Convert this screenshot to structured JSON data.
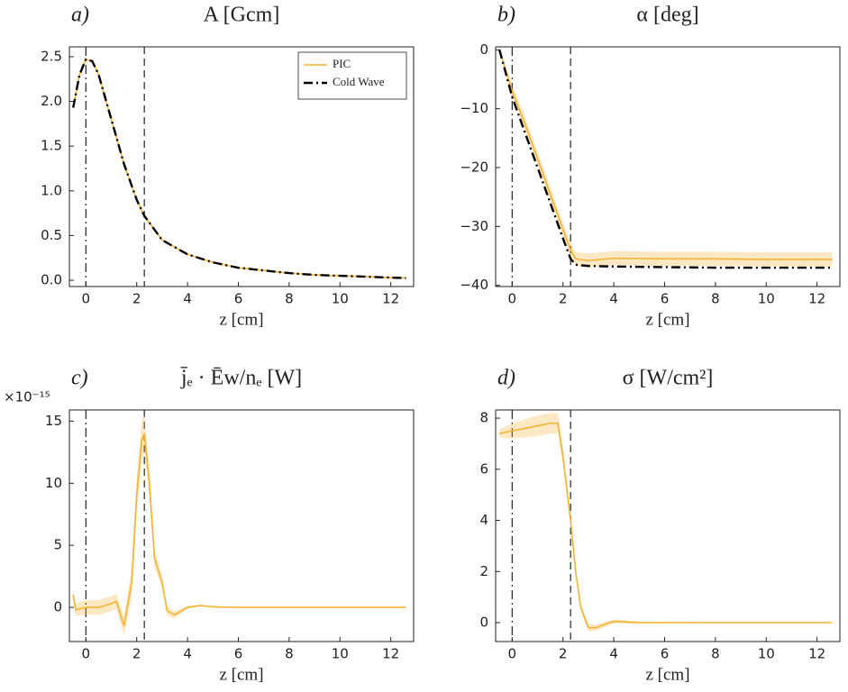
{
  "chart_data": [
    {
      "type": "line",
      "panel_label": "a)",
      "title": "A [Gcm]",
      "x_label": "z [cm]",
      "x": [
        -0.5,
        -0.25,
        0,
        0.25,
        0.5,
        1,
        1.5,
        2,
        2.3,
        3,
        4,
        5,
        6,
        7,
        8,
        9,
        10,
        11,
        12,
        12.6
      ],
      "series": [
        {
          "name": "PIC",
          "color": "#f5b335",
          "style": "solid",
          "values": [
            1.93,
            2.3,
            2.47,
            2.45,
            2.3,
            1.8,
            1.3,
            0.9,
            0.72,
            0.45,
            0.29,
            0.2,
            0.14,
            0.11,
            0.08,
            0.06,
            0.05,
            0.04,
            0.03,
            0.025
          ]
        },
        {
          "name": "Cold Wave",
          "color": "#000000",
          "style": "dashdot",
          "values": [
            1.93,
            2.3,
            2.47,
            2.45,
            2.3,
            1.8,
            1.3,
            0.9,
            0.72,
            0.45,
            0.29,
            0.2,
            0.14,
            0.11,
            0.08,
            0.06,
            0.05,
            0.04,
            0.03,
            0.025
          ]
        }
      ],
      "vlines": [
        {
          "x": 0,
          "style": "dashdot"
        },
        {
          "x": 2.3,
          "style": "dashed"
        }
      ],
      "xlim": [
        -0.65,
        12.9
      ],
      "ylim": [
        -0.07,
        2.61
      ],
      "xticks": [
        0,
        2,
        4,
        6,
        8,
        10,
        12
      ],
      "yticks": [
        {
          "value": 0,
          "label": "0.0"
        },
        0.5,
        {
          "value": 1,
          "label": "1.0"
        },
        1.5,
        {
          "value": 2,
          "label": "2.0"
        },
        2.5
      ],
      "legend": "upper right"
    },
    {
      "type": "line",
      "panel_label": "b)",
      "title": "α [deg]",
      "x_label": "z [cm]",
      "x": [
        -0.5,
        0,
        0.5,
        1,
        1.5,
        2,
        2.3,
        2.5,
        3,
        4,
        6,
        8,
        10,
        12,
        12.6
      ],
      "series": [
        {
          "name": "PIC",
          "color": "#f5b335",
          "style": "solid",
          "values": [
            0,
            -7,
            -12.5,
            -18.5,
            -24.5,
            -30.5,
            -34,
            -35.5,
            -35.8,
            -35.4,
            -35.5,
            -35.5,
            -35.6,
            -35.6,
            -35.6
          ],
          "band": [
            0.3,
            1,
            1.2,
            1.2,
            1.2,
            1.2,
            1.2,
            1.2,
            1.2,
            1.2,
            1.2,
            1.2,
            1.2,
            1.2,
            1.2
          ]
        },
        {
          "name": "Cold Wave",
          "color": "#000000",
          "style": "dashdot",
          "values": [
            0,
            -8,
            -14,
            -20,
            -26,
            -32,
            -35.5,
            -36.5,
            -36.7,
            -36.8,
            -36.9,
            -37,
            -37,
            -37,
            -37
          ]
        }
      ],
      "vlines": [
        {
          "x": 0,
          "style": "dashdot"
        },
        {
          "x": 2.3,
          "style": "dashed"
        }
      ],
      "xlim": [
        -0.65,
        12.9
      ],
      "ylim": [
        -40.2,
        0.5
      ],
      "xticks": [
        0,
        2,
        4,
        6,
        8,
        10,
        12
      ],
      "yticks": [
        0,
        {
          "value": -10,
          "label": "−10"
        },
        {
          "value": -20,
          "label": "−20"
        },
        {
          "value": -30,
          "label": "−30"
        },
        {
          "value": -40,
          "label": "−40"
        }
      ]
    },
    {
      "type": "line",
      "panel_label": "c)",
      "title": "j̄ₑ · Ēw/nₑ [W]",
      "x_label": "z [cm]",
      "y_multiplier": "×10⁻¹⁵",
      "x": [
        -0.5,
        -0.4,
        0,
        0.5,
        1,
        1.2,
        1.5,
        1.8,
        2,
        2.2,
        2.3,
        2.5,
        2.7,
        3,
        3.2,
        3.5,
        4,
        4.5,
        5,
        6,
        8,
        10,
        12.6
      ],
      "series": [
        {
          "name": "PIC",
          "color": "#f5b335",
          "style": "solid",
          "values": [
            1,
            -0.2,
            0,
            0,
            0.3,
            0.5,
            -1.5,
            2,
            9,
            13.5,
            14,
            10,
            4,
            2,
            -0.3,
            -0.6,
            0,
            0.15,
            0.05,
            0,
            0,
            0,
            0
          ],
          "band": [
            0.5,
            0.5,
            0.6,
            0.6,
            0.6,
            0.6,
            0.8,
            1.2,
            1.5,
            1.6,
            1.5,
            1.2,
            0.8,
            0.5,
            0.4,
            0.3,
            0.1,
            0.05,
            0.05,
            0.03,
            0.02,
            0.02,
            0.02
          ]
        }
      ],
      "vlines": [
        {
          "x": 0,
          "style": "dashdot"
        },
        {
          "x": 2.3,
          "style": "dashed"
        }
      ],
      "xlim": [
        -0.65,
        12.9
      ],
      "ylim": [
        -2.75,
        15.9
      ],
      "xticks": [
        0,
        2,
        4,
        6,
        8,
        10,
        12
      ],
      "yticks": [
        0,
        5,
        10,
        15
      ]
    },
    {
      "type": "line",
      "panel_label": "d)",
      "title": "σ [W/cm²]",
      "x_label": "z [cm]",
      "x": [
        -0.5,
        0,
        0.5,
        1,
        1.5,
        1.8,
        2,
        2.3,
        2.5,
        2.7,
        3,
        3.3,
        3.7,
        4,
        5,
        6,
        8,
        10,
        12.6
      ],
      "series": [
        {
          "name": "PIC",
          "color": "#f5b335",
          "style": "solid",
          "values": [
            7.4,
            7.5,
            7.6,
            7.7,
            7.8,
            7.8,
            6.5,
            4,
            2,
            0.6,
            -0.2,
            -0.2,
            -0.05,
            0.05,
            0,
            0,
            0,
            0,
            0
          ],
          "band": [
            0.15,
            0.3,
            0.35,
            0.4,
            0.4,
            0.4,
            0.3,
            0.2,
            0.15,
            0.15,
            0.15,
            0.12,
            0.1,
            0.08,
            0.05,
            0.03,
            0.02,
            0.02,
            0.02
          ]
        }
      ],
      "vlines": [
        {
          "x": 0,
          "style": "dashdot"
        },
        {
          "x": 2.3,
          "style": "dashed"
        }
      ],
      "xlim": [
        -0.65,
        12.9
      ],
      "ylim": [
        -0.74,
        8.32
      ],
      "xticks": [
        0,
        2,
        4,
        6,
        8,
        10,
        12
      ],
      "yticks": [
        0,
        2,
        4,
        6,
        8
      ]
    }
  ]
}
